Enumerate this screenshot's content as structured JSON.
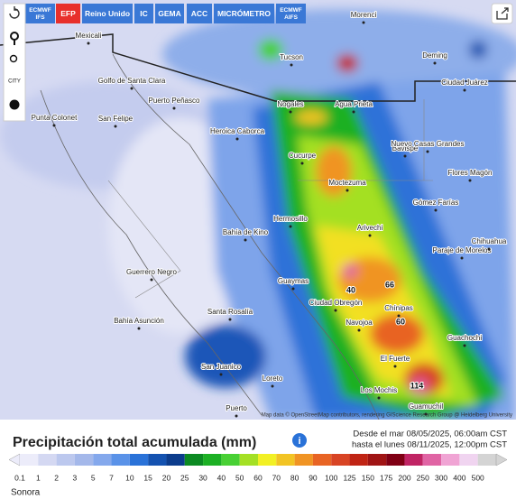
{
  "toolbar": [
    "ECMWF IFS",
    "EFP",
    "Reino Unido",
    "IC",
    "GEMA",
    "ACC",
    "MICRÓMETRO",
    "ECMWF AIFS"
  ],
  "active_tool": "EFP",
  "side_controls": [
    "CITY"
  ],
  "cities": [
    "Mexicali",
    "Tucson",
    "Morenci",
    "Deming",
    "Ciudad Juárez",
    "Golfo de Santa Clara",
    "Puerto Peñasco",
    "Punta Colonet",
    "San Felipe",
    "Nogales",
    "Agua Prieta",
    "Heroica Caborca",
    "Bavispe",
    "Nuevo Casas Grandes",
    "Cucurpe",
    "Moctezuma",
    "Flores Magón",
    "Gómez Farías",
    "Hermosillo",
    "Bahía de Kino",
    "Arivechi",
    "Paraje de Morelos",
    "Chihuahua",
    "Guerrero Negro",
    "Guaymas",
    "Ciudad Obregón",
    "Santa Rosalía",
    "Navojoa",
    "Chínipas",
    "Bahía Asunción",
    "Guachochi",
    "El Fuerte",
    "San Juanico",
    "Loreto",
    "Los Mochis",
    "Guamuchil",
    "Puerto"
  ],
  "map_values": [
    40,
    66,
    60,
    114
  ],
  "attribution": "Map data © OpenStreetMap contributors, rendering GIScience Research Group @ Heidelberg University",
  "title": "Precipitación total acumulada (mm)",
  "date_from": "Desde el mar 08/05/2025, 06:00am CST",
  "date_to": "hasta el lunes 08/11/2025, 12:00pm CST",
  "legend": [
    {
      "value": 0.1,
      "color": "#ececfa"
    },
    {
      "value": 1,
      "color": "#d4d8f2"
    },
    {
      "value": 2,
      "color": "#bcc8ee"
    },
    {
      "value": 3,
      "color": "#a4b8ea"
    },
    {
      "value": 5,
      "color": "#84a8ec"
    },
    {
      "value": 7,
      "color": "#5a92e8"
    },
    {
      "value": 10,
      "color": "#2a72d8"
    },
    {
      "value": 15,
      "color": "#1452b0"
    },
    {
      "value": 20,
      "color": "#0c3c8c"
    },
    {
      "value": 25,
      "color": "#0c8a22"
    },
    {
      "value": 30,
      "color": "#1cb024"
    },
    {
      "value": 40,
      "color": "#48d034"
    },
    {
      "value": 50,
      "color": "#a4e024"
    },
    {
      "value": 60,
      "color": "#f2f024"
    },
    {
      "value": 70,
      "color": "#f2c424"
    },
    {
      "value": 80,
      "color": "#f09424"
    },
    {
      "value": 90,
      "color": "#e86424"
    },
    {
      "value": 100,
      "color": "#d84424"
    },
    {
      "value": 125,
      "color": "#c02414"
    },
    {
      "value": 150,
      "color": "#a01414"
    },
    {
      "value": 175,
      "color": "#800014"
    },
    {
      "value": 200,
      "color": "#c02464"
    },
    {
      "value": 250,
      "color": "#e064a4"
    },
    {
      "value": 300,
      "color": "#f0a4d4"
    },
    {
      "value": 400,
      "color": "#f0d4f0"
    },
    {
      "value": 500,
      "color": "#d4d4d4"
    }
  ],
  "region": "Sonora"
}
